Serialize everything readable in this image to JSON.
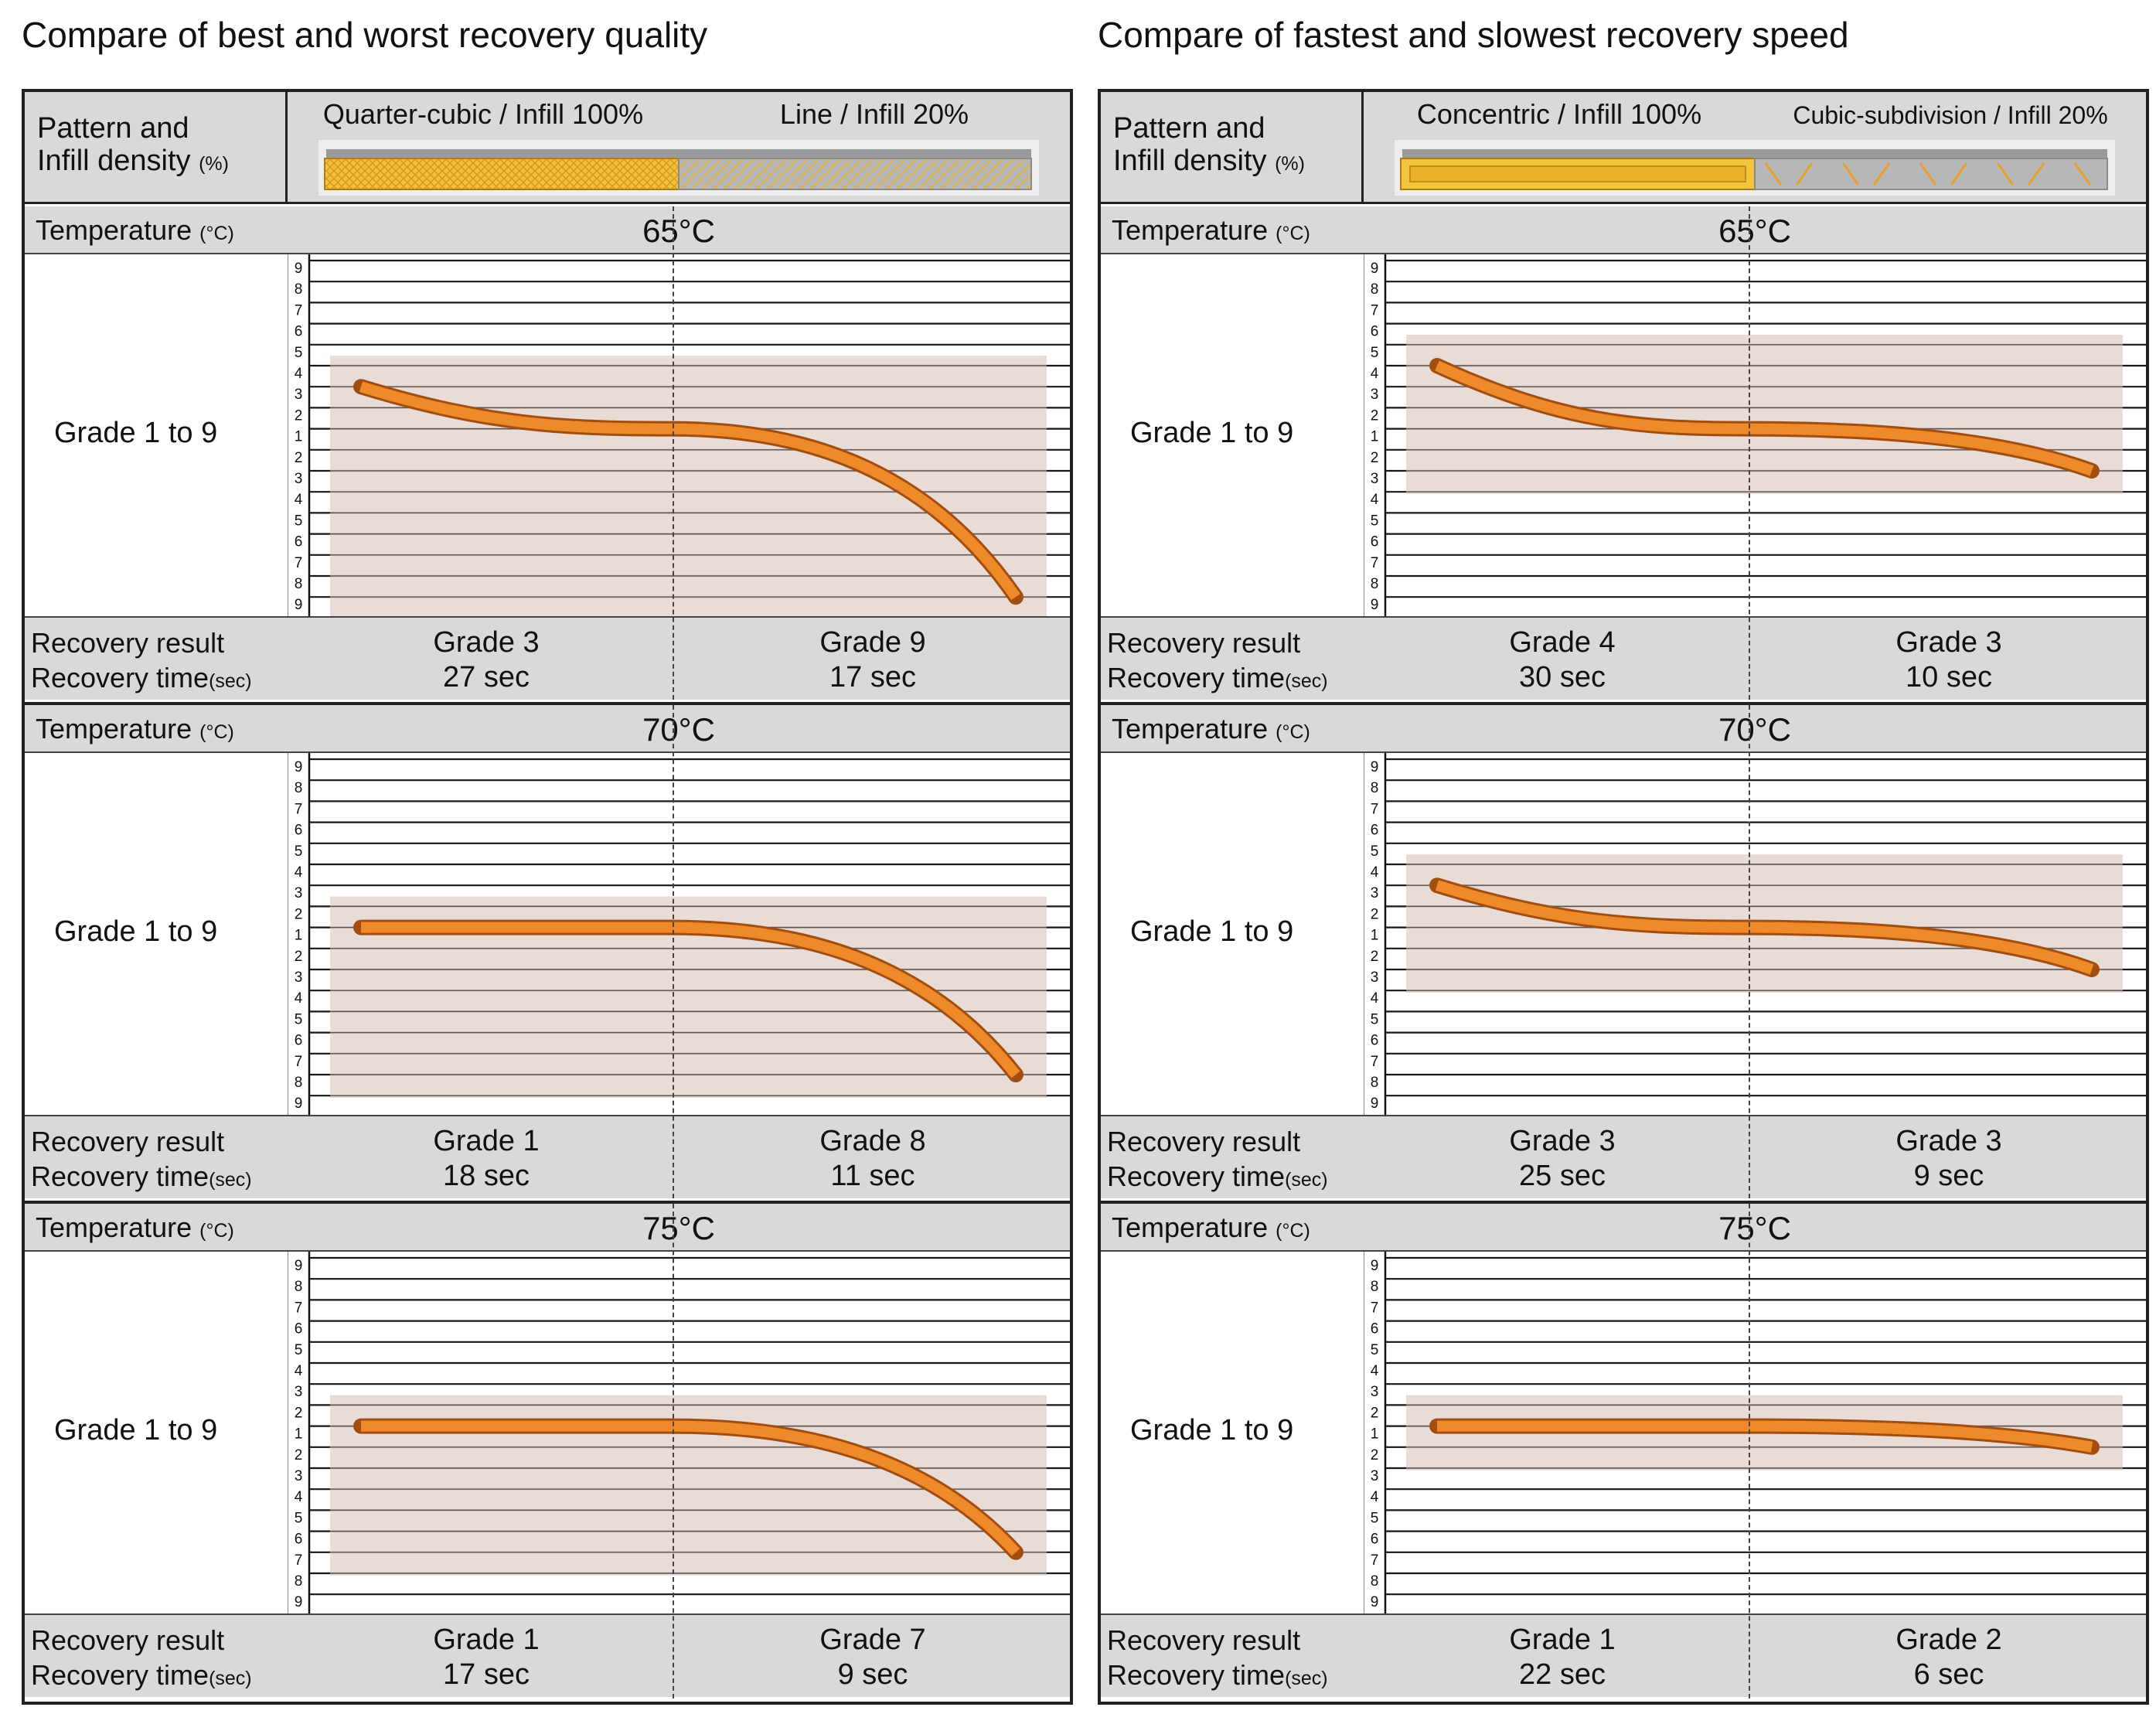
{
  "colors": {
    "bar": "#ef8a2a",
    "bar_dark": "#a24e10",
    "shade": "#e2cfc8",
    "label_bg": "#d9d9d9"
  },
  "row_labels": {
    "pattern": "Pattern and",
    "infill": "Infill density",
    "percent": "(%)",
    "temperature": "Temperature",
    "celsius": "(°C)",
    "grade_range": "Grade 1 to 9",
    "recovery_result": "Recovery result",
    "recovery_time": "Recovery time",
    "sec_unit": "(sec)"
  },
  "y_ticks": [
    "9",
    "8",
    "7",
    "6",
    "5",
    "4",
    "3",
    "2",
    "1",
    "2",
    "3",
    "4",
    "5",
    "6",
    "7",
    "8",
    "9"
  ],
  "panels": [
    {
      "title": "Compare of best and worst recovery quality",
      "left_pattern": "Quarter-cubic / Infill 100%",
      "right_pattern": "Line / Infill 20%",
      "rows": [
        {
          "temperature": "65°C",
          "left_grade": "Grade 3",
          "left_time": "27 sec",
          "right_grade": "Grade 9",
          "right_time": "17 sec",
          "left_end": -3,
          "right_end": 9
        },
        {
          "temperature": "70°C",
          "left_grade": "Grade 1",
          "left_time": "18 sec",
          "right_grade": "Grade 8",
          "right_time": "11 sec",
          "left_end": -1,
          "right_end": 8
        },
        {
          "temperature": "75°C",
          "left_grade": "Grade 1",
          "left_time": "17 sec",
          "right_grade": "Grade 7",
          "right_time": "9 sec",
          "left_end": -1,
          "right_end": 7
        }
      ]
    },
    {
      "title": "Compare of fastest and slowest recovery speed",
      "left_pattern": "Concentric / Infill 100%",
      "right_pattern": "Cubic-subdivision / Infill 20%",
      "rows": [
        {
          "temperature": "65°C",
          "left_grade": "Grade 4",
          "left_time": "30 sec",
          "right_grade": "Grade 3",
          "right_time": "10 sec",
          "left_end": -4,
          "right_end": 3
        },
        {
          "temperature": "70°C",
          "left_grade": "Grade 3",
          "left_time": "25 sec",
          "right_grade": "Grade 3",
          "right_time": "9 sec",
          "left_end": -3,
          "right_end": 3
        },
        {
          "temperature": "75°C",
          "left_grade": "Grade 1",
          "left_time": "22 sec",
          "right_grade": "Grade 2",
          "right_time": "6 sec",
          "left_end": -1,
          "right_end": 2
        }
      ]
    }
  ]
}
